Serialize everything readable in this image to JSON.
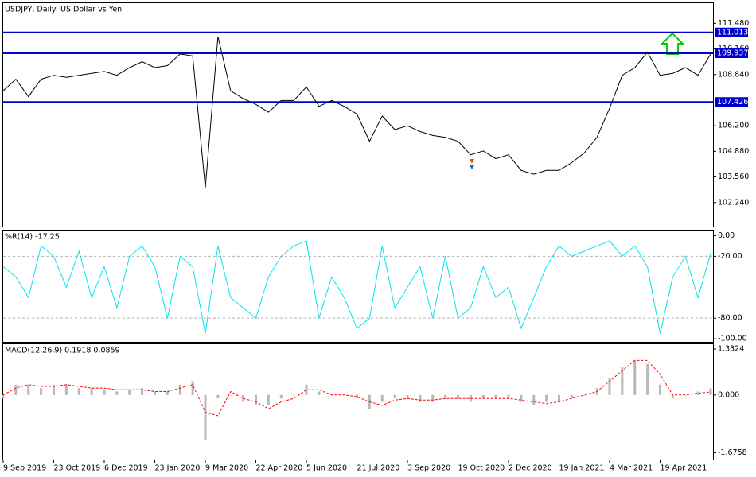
{
  "chart_data": [
    {
      "type": "line",
      "title": "USDJPY, Daily:  US Dollar vs Yen",
      "ylim": [
        101.0,
        112.52
      ],
      "yticks": [
        {
          "value": 102.24,
          "label": "102.240"
        },
        {
          "value": 103.56,
          "label": "103.560"
        },
        {
          "value": 104.88,
          "label": "104.880"
        },
        {
          "value": 106.2,
          "label": "106.200"
        },
        {
          "value": 108.84,
          "label": "108.840"
        },
        {
          "value": 110.16,
          "label": "110.160"
        },
        {
          "value": 111.48,
          "label": "111.480"
        }
      ],
      "levels": [
        111.013,
        109.937,
        107.426
      ],
      "level_color": "#0000cd",
      "level_labels": true,
      "series": [
        {
          "color": "#000000",
          "values": [
            108.0,
            108.6,
            107.7,
            108.6,
            108.8,
            108.7,
            108.8,
            108.9,
            109.0,
            108.8,
            109.2,
            109.5,
            109.2,
            109.3,
            109.9,
            109.8,
            103.0,
            110.8,
            108.0,
            107.6,
            107.3,
            106.9,
            107.5,
            107.5,
            108.2,
            107.2,
            107.5,
            107.2,
            106.8,
            105.4,
            106.7,
            106.0,
            106.2,
            105.9,
            105.7,
            105.6,
            105.4,
            104.7,
            104.9,
            104.5,
            104.7,
            103.9,
            103.7,
            103.9,
            103.9,
            104.3,
            104.8,
            105.6,
            107.1,
            108.8,
            109.2,
            110.0,
            108.8,
            108.9,
            109.2,
            108.8,
            109.9
          ]
        }
      ]
    },
    {
      "type": "line",
      "title": "%R(14) -17.25",
      "ylim": [
        -103,
        5
      ],
      "yticks": [
        {
          "value": 0,
          "label": "0.00"
        },
        {
          "value": -20,
          "label": "-20.00"
        },
        {
          "value": -80,
          "label": "-80.00"
        },
        {
          "value": -100,
          "label": "-100.00"
        }
      ],
      "levels": [
        -20,
        -80
      ],
      "level_color": "#b0b0b0",
      "level_labels": false,
      "series": [
        {
          "color": "#00e5ee",
          "values": [
            -30,
            -40,
            -60,
            -10,
            -20,
            -50,
            -15,
            -60,
            -30,
            -70,
            -20,
            -10,
            -30,
            -80,
            -20,
            -30,
            -95,
            -10,
            -60,
            -70,
            -80,
            -40,
            -20,
            -10,
            -5,
            -80,
            -40,
            -60,
            -90,
            -80,
            -10,
            -70,
            -50,
            -30,
            -80,
            -20,
            -80,
            -70,
            -30,
            -60,
            -50,
            -90,
            -60,
            -30,
            -10,
            -20,
            -15,
            -10,
            -5,
            -20,
            -10,
            -30,
            -95,
            -40,
            -20,
            -60,
            -17.25
          ]
        }
      ]
    },
    {
      "type": "bar",
      "title": "MACD(12,26,9) 0.1918 0.0859",
      "ylim": [
        -1.87,
        1.47
      ],
      "yticks": [
        -1.6758,
        {
          "value": 0,
          "label": "0.000"
        },
        1.3324
      ],
      "categories": [
        "9 Sep 2019",
        null,
        null,
        null,
        "23 Oct 2019",
        null,
        null,
        null,
        "6 Dec 2019",
        null,
        null,
        null,
        "23 Jan 2020",
        null,
        null,
        null,
        "9 Mar 2020",
        null,
        null,
        null,
        "22 Apr 2020",
        null,
        null,
        null,
        "5 Jun 2020",
        null,
        null,
        null,
        "21 Jul 2020",
        null,
        null,
        null,
        "3 Sep 2020",
        null,
        null,
        null,
        "19 Oct 2020",
        null,
        null,
        null,
        "2 Dec 2020",
        null,
        null,
        null,
        "19 Jan 2021",
        null,
        null,
        null,
        "4 Mar 2021",
        null,
        null,
        null,
        "19 Apr 2021",
        null,
        null,
        null,
        null
      ],
      "series": [
        {
          "kind": "bar",
          "color": "#b8b8b8",
          "values": [
            -0.1,
            0.3,
            0.3,
            0.2,
            0.3,
            0.3,
            0.2,
            0.2,
            0.15,
            0.1,
            0.15,
            0.2,
            0.1,
            0.1,
            0.3,
            0.4,
            -1.3,
            -0.1,
            0.0,
            -0.2,
            -0.3,
            -0.3,
            -0.1,
            0.0,
            0.3,
            0.1,
            0.0,
            0.0,
            -0.1,
            -0.4,
            -0.2,
            -0.1,
            -0.1,
            -0.2,
            -0.2,
            -0.1,
            -0.1,
            -0.2,
            -0.1,
            -0.1,
            -0.1,
            -0.2,
            -0.3,
            -0.2,
            -0.2,
            -0.1,
            0.0,
            0.2,
            0.5,
            0.8,
            1.0,
            0.9,
            0.3,
            -0.1,
            0.0,
            0.1,
            0.1918
          ]
        },
        {
          "kind": "line",
          "dashed": true,
          "color": "#ff0000",
          "values": [
            0.0,
            0.2,
            0.3,
            0.25,
            0.25,
            0.3,
            0.25,
            0.2,
            0.2,
            0.15,
            0.15,
            0.15,
            0.1,
            0.1,
            0.2,
            0.3,
            -0.5,
            -0.6,
            0.1,
            -0.1,
            -0.2,
            -0.4,
            -0.2,
            -0.1,
            0.15,
            0.15,
            0.0,
            0.0,
            -0.05,
            -0.2,
            -0.3,
            -0.15,
            -0.1,
            -0.15,
            -0.15,
            -0.1,
            -0.1,
            -0.1,
            -0.1,
            -0.1,
            -0.1,
            -0.15,
            -0.2,
            -0.25,
            -0.2,
            -0.1,
            0.0,
            0.1,
            0.4,
            0.7,
            1.0,
            1.0,
            0.6,
            0.0,
            0.0,
            0.05,
            0.0859
          ]
        }
      ]
    }
  ]
}
